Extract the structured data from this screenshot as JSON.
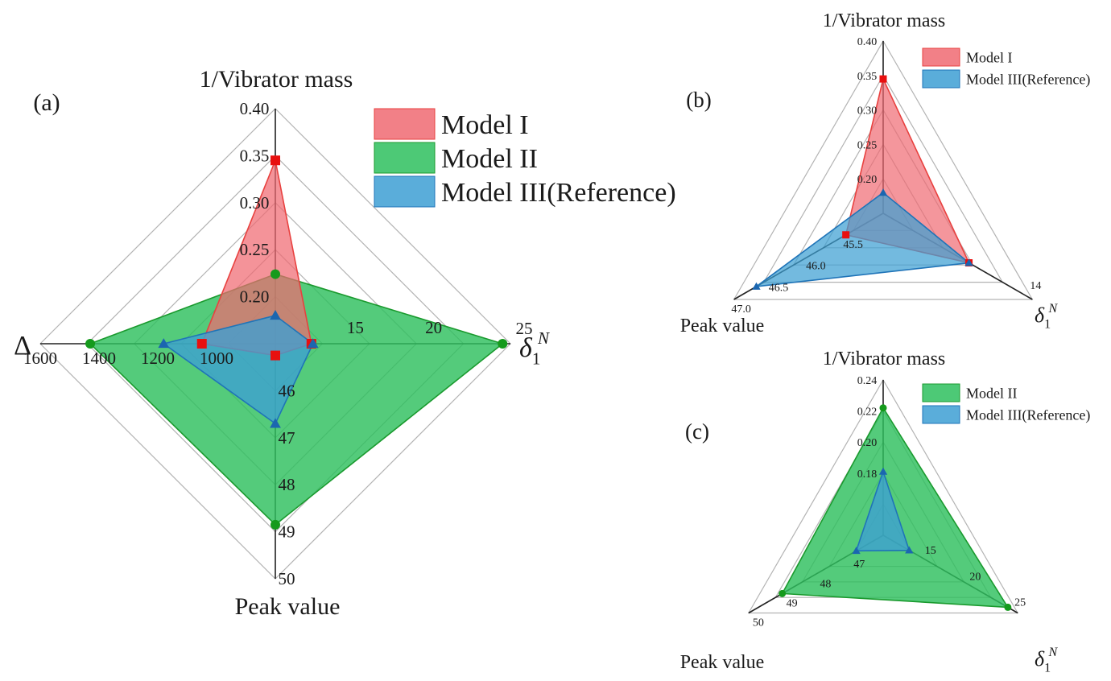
{
  "colors": {
    "model_i": "#f06a72",
    "model_i_line": "#e8413f",
    "model_i_marker": "#e8100f",
    "model_ii": "#2ec05e",
    "model_ii_line": "#1a9a2e",
    "model_ii_marker": "#159a1c",
    "model_iii": "#3d9fd3",
    "model_iii_line": "#1f74b8",
    "model_iii_marker": "#1b66b0"
  },
  "chart_data": [
    {
      "id": "a",
      "type": "radar",
      "panel_label": "(a)",
      "axes": [
        {
          "key": "inv_mass",
          "label": "1/Vibrator mass",
          "min": 0.15,
          "max": 0.4,
          "ticks": [
            "0.20",
            "0.25",
            "0.30",
            "0.35",
            "0.40"
          ],
          "tick_values": [
            0.2,
            0.25,
            0.3,
            0.35,
            0.4
          ]
        },
        {
          "key": "delta1n",
          "label": "δ",
          "label_sub": "1",
          "label_sup": "N",
          "min": 10,
          "max": 25,
          "ticks": [
            "15",
            "20",
            "25"
          ],
          "tick_values": [
            15,
            20,
            25
          ]
        },
        {
          "key": "peak",
          "label": "Peak value",
          "min": 45,
          "max": 50,
          "ticks": [
            "46",
            "47",
            "48",
            "49",
            "50"
          ],
          "tick_values": [
            46,
            47,
            48,
            49,
            50
          ]
        },
        {
          "key": "Delta",
          "label": "Δ",
          "min": 800,
          "max": 1600,
          "ticks": [
            "1000",
            "1200",
            "1400",
            "1600"
          ],
          "tick_values": [
            1000,
            1200,
            1400,
            1600
          ]
        }
      ],
      "series": [
        {
          "name": "Model I",
          "values": [
            0.345,
            12.3,
            45.25,
            1050
          ],
          "marker": "square",
          "color_key": "model_i"
        },
        {
          "name": "Model II",
          "values": [
            0.224,
            24.5,
            48.85,
            1430
          ],
          "marker": "circle",
          "color_key": "model_ii"
        },
        {
          "name": "Model III(Reference)",
          "values": [
            0.18,
            12.4,
            46.7,
            1180
          ],
          "marker": "triangle",
          "color_key": "model_iii"
        }
      ],
      "legend": [
        "Model I",
        "Model II",
        "Model III(Reference)"
      ]
    },
    {
      "id": "b",
      "type": "radar",
      "panel_label": "(b)",
      "axes": [
        {
          "key": "inv_mass",
          "label": "1/Vibrator mass",
          "min": 0.15,
          "max": 0.4,
          "ticks": [
            "0.20",
            "0.25",
            "0.30",
            "0.35",
            "0.40"
          ],
          "tick_values": [
            0.2,
            0.25,
            0.3,
            0.35,
            0.4
          ]
        },
        {
          "key": "delta1n",
          "label": "δ",
          "label_sub": "1",
          "label_sup": "N",
          "min": 10,
          "max": 14,
          "ticks": [
            "14"
          ],
          "tick_values": [
            14
          ]
        },
        {
          "key": "peak",
          "label": "Peak value",
          "min": 45,
          "max": 47,
          "ticks": [
            "45.5",
            "46.0",
            "46.5",
            "47.0"
          ],
          "tick_values": [
            45.5,
            46.0,
            46.5,
            47.0
          ]
        }
      ],
      "series": [
        {
          "name": "Model I",
          "values": [
            0.345,
            12.3,
            45.5
          ],
          "marker": "square",
          "color_key": "model_i"
        },
        {
          "name": "Model III(Reference)",
          "values": [
            0.18,
            12.3,
            46.7
          ],
          "marker": "triangle",
          "color_key": "model_iii"
        }
      ],
      "legend": [
        "Model I",
        "Model III(Reference)"
      ]
    },
    {
      "id": "c",
      "type": "radar",
      "panel_label": "(c)",
      "axes": [
        {
          "key": "inv_mass",
          "label": "1/Vibrator mass",
          "min": 0.14,
          "max": 0.24,
          "ticks": [
            "0.18",
            "0.20",
            "0.22",
            "0.24"
          ],
          "tick_values": [
            0.18,
            0.2,
            0.22,
            0.24
          ]
        },
        {
          "key": "delta1n",
          "label": "δ",
          "label_sub": "1",
          "label_sup": "N",
          "min": 10,
          "max": 25,
          "ticks": [
            "15",
            "20",
            "25"
          ],
          "tick_values": [
            15,
            20,
            25
          ]
        },
        {
          "key": "peak",
          "label": "Peak value",
          "min": 46,
          "max": 50,
          "ticks": [
            "47",
            "48",
            "49",
            "50"
          ],
          "tick_values": [
            47,
            48,
            49,
            50
          ]
        }
      ],
      "series": [
        {
          "name": "Model II",
          "values": [
            0.222,
            23.9,
            49.0
          ],
          "marker": "circle",
          "color_key": "model_ii"
        },
        {
          "name": "Model III(Reference)",
          "values": [
            0.181,
            12.9,
            46.8
          ],
          "marker": "triangle",
          "color_key": "model_iii"
        }
      ],
      "legend": [
        "Model II",
        "Model III(Reference)"
      ]
    }
  ]
}
